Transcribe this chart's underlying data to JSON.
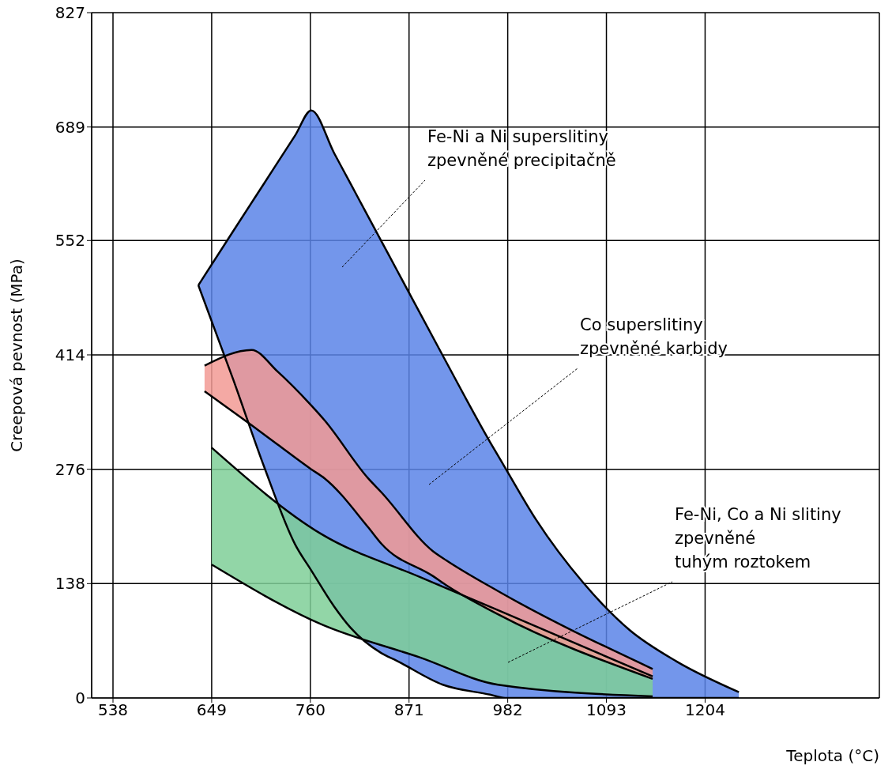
{
  "chart_data": {
    "type": "area",
    "xlabel": "Teplota (°C)",
    "ylabel": "Creepová pevnost (MPa)",
    "xlim": [
      514,
      1400
    ],
    "xticks": [
      538,
      649,
      760,
      871,
      982,
      1093,
      1204
    ],
    "ylim": [
      0,
      827
    ],
    "yticks": [
      0,
      138,
      276,
      414,
      552,
      689,
      827
    ],
    "grid": true,
    "legend": false,
    "series": [
      {
        "color": "#5b84e8",
        "x": [
          634,
          673,
          708,
          743,
          761,
          787,
          805,
          840,
          857,
          909,
          962,
          979,
          1014,
          1067,
          1119,
          1172,
          1242
        ],
        "values": [
          498,
          563,
          621,
          679,
          709,
          657,
          621,
          551,
          517,
          413,
          309,
          278,
          215,
          139,
          82,
          44,
          7
        ]
      },
      {
        "type": "line",
        "color": "#000000",
        "x": [
          634,
          673,
          708,
          743,
          761,
          787,
          805,
          840,
          857,
          909,
          962,
          979,
          1014,
          1067,
          1119,
          1172,
          1242
        ],
        "values": [
          498,
          385,
          279,
          185,
          154,
          110,
          85,
          54,
          45,
          16,
          4,
          0,
          0,
          0,
          0,
          0,
          0
        ]
      },
      {
        "color": "#7fcf98",
        "x": [
          649,
          772,
          883,
          971,
          1145
        ],
        "values": [
          302,
          198,
          146,
          106,
          26
        ]
      },
      {
        "type": "line",
        "color": "#000000",
        "x": [
          649,
          772,
          883,
          971,
          1145
        ],
        "values": [
          161,
          89,
          49,
          16,
          2
        ]
      },
      {
        "color": "#f29a94",
        "x": [
          641,
          694,
          723,
          761,
          776,
          825,
          840,
          898,
          913,
          971,
          1145
        ],
        "values": [
          401,
          420,
          394,
          353,
          335,
          265,
          248,
          177,
          166,
          129,
          35
        ]
      },
      {
        "type": "line",
        "color": "#000000",
        "x": [
          641,
          694,
          723,
          761,
          776,
          825,
          840,
          898,
          913,
          971,
          1145
        ],
        "values": [
          370,
          329,
          306,
          276,
          265,
          206,
          186,
          147,
          136,
          101,
          23
        ]
      }
    ],
    "annotations": [
      "Fe-Ni a Ni superslitiny\nzpevněné precipitačně",
      "Co superslitiny\nzpevněné karbidy",
      "Fe-Ni, Co a Ni slitiny\nzpevněné\ntuhým roztokem"
    ]
  }
}
